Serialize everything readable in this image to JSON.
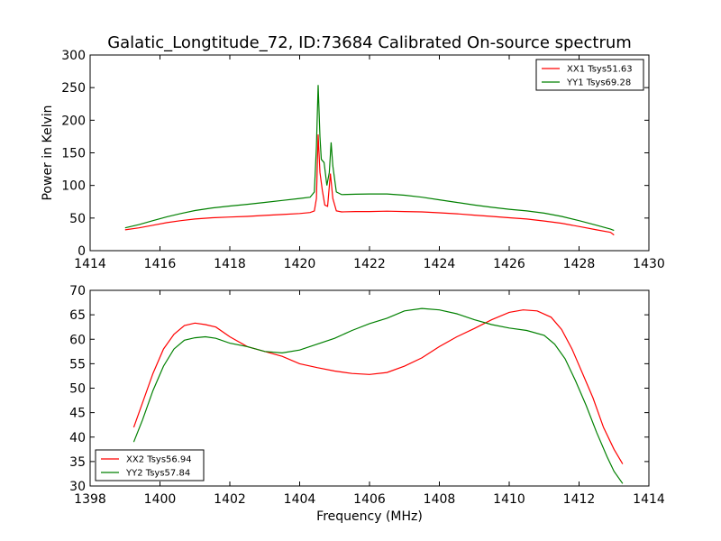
{
  "figure_title": "Galatic_Longtitude_72, ID:73684 Calibrated On-source spectrum",
  "chart_data": [
    {
      "type": "line",
      "title": "Galatic_Longtitude_72, ID:73684 Calibrated On-source spectrum",
      "xlabel": "",
      "ylabel": "Power in Kelvin",
      "xlim": [
        1414,
        1430
      ],
      "ylim": [
        0,
        300
      ],
      "xticks": [
        1414,
        1416,
        1418,
        1420,
        1422,
        1424,
        1426,
        1428,
        1430
      ],
      "yticks": [
        0,
        50,
        100,
        150,
        200,
        250,
        300
      ],
      "grid": false,
      "legend_position": "top-right",
      "series": [
        {
          "name": "XX1 Tsys51.63",
          "color": "#ff0000",
          "points": [
            [
              1415.0,
              32
            ],
            [
              1415.4,
              35
            ],
            [
              1415.8,
              39
            ],
            [
              1416.2,
              43
            ],
            [
              1416.6,
              46
            ],
            [
              1417.0,
              48.5
            ],
            [
              1417.5,
              50.5
            ],
            [
              1418.0,
              51.5
            ],
            [
              1418.5,
              52.5
            ],
            [
              1419.0,
              54
            ],
            [
              1419.5,
              55.5
            ],
            [
              1420.0,
              57
            ],
            [
              1420.3,
              58.5
            ],
            [
              1420.42,
              61
            ],
            [
              1420.48,
              80
            ],
            [
              1420.53,
              178
            ],
            [
              1420.58,
              120
            ],
            [
              1420.65,
              92
            ],
            [
              1420.72,
              70
            ],
            [
              1420.8,
              68
            ],
            [
              1420.88,
              118
            ],
            [
              1420.95,
              80
            ],
            [
              1421.05,
              61
            ],
            [
              1421.2,
              59.5
            ],
            [
              1421.6,
              60
            ],
            [
              1422.0,
              60
            ],
            [
              1422.5,
              60.5
            ],
            [
              1423.0,
              60
            ],
            [
              1423.5,
              59.5
            ],
            [
              1424.0,
              58
            ],
            [
              1424.5,
              56.5
            ],
            [
              1425.0,
              54.5
            ],
            [
              1425.5,
              52.5
            ],
            [
              1426.0,
              50.5
            ],
            [
              1426.5,
              48.5
            ],
            [
              1427.0,
              45.5
            ],
            [
              1427.5,
              42
            ],
            [
              1428.0,
              37
            ],
            [
              1428.5,
              32
            ],
            [
              1428.9,
              28
            ],
            [
              1429.0,
              24
            ]
          ]
        },
        {
          "name": "YY1 Tsys69.28",
          "color": "#008000",
          "points": [
            [
              1415.0,
              35
            ],
            [
              1415.4,
              40
            ],
            [
              1415.8,
              46
            ],
            [
              1416.2,
              52
            ],
            [
              1416.6,
              57
            ],
            [
              1417.0,
              61.5
            ],
            [
              1417.5,
              65.5
            ],
            [
              1418.0,
              68.5
            ],
            [
              1418.5,
              71
            ],
            [
              1419.0,
              74
            ],
            [
              1419.5,
              77
            ],
            [
              1420.0,
              80
            ],
            [
              1420.3,
              82
            ],
            [
              1420.42,
              90
            ],
            [
              1420.48,
              160
            ],
            [
              1420.53,
              254
            ],
            [
              1420.58,
              175
            ],
            [
              1420.62,
              140
            ],
            [
              1420.7,
              135
            ],
            [
              1420.78,
              100
            ],
            [
              1420.85,
              120
            ],
            [
              1420.9,
              166
            ],
            [
              1420.95,
              130
            ],
            [
              1421.05,
              90
            ],
            [
              1421.2,
              86
            ],
            [
              1421.6,
              86.5
            ],
            [
              1422.0,
              87
            ],
            [
              1422.5,
              87
            ],
            [
              1423.0,
              85
            ],
            [
              1423.5,
              82
            ],
            [
              1424.0,
              78
            ],
            [
              1424.5,
              74
            ],
            [
              1425.0,
              70
            ],
            [
              1425.5,
              66.5
            ],
            [
              1426.0,
              63.5
            ],
            [
              1426.5,
              61
            ],
            [
              1427.0,
              57.5
            ],
            [
              1427.5,
              52.5
            ],
            [
              1428.0,
              46
            ],
            [
              1428.5,
              39
            ],
            [
              1428.9,
              33
            ],
            [
              1429.0,
              31
            ]
          ]
        }
      ]
    },
    {
      "type": "line",
      "title": "",
      "xlabel": "Frequency (MHz)",
      "ylabel": "",
      "xlim": [
        1398,
        1414
      ],
      "ylim": [
        30,
        70
      ],
      "xticks": [
        1398,
        1400,
        1402,
        1404,
        1406,
        1408,
        1410,
        1412,
        1414
      ],
      "yticks": [
        30,
        35,
        40,
        45,
        50,
        55,
        60,
        65,
        70
      ],
      "grid": false,
      "legend_position": "bottom-left",
      "series": [
        {
          "name": "XX2 Tsys56.94",
          "color": "#ff0000",
          "points": [
            [
              1399.25,
              42
            ],
            [
              1399.5,
              47
            ],
            [
              1399.8,
              53
            ],
            [
              1400.1,
              58
            ],
            [
              1400.4,
              61
            ],
            [
              1400.7,
              62.8
            ],
            [
              1401.0,
              63.3
            ],
            [
              1401.3,
              63
            ],
            [
              1401.6,
              62.5
            ],
            [
              1402.0,
              60.5
            ],
            [
              1402.5,
              58.5
            ],
            [
              1403.0,
              57.5
            ],
            [
              1403.5,
              56.5
            ],
            [
              1404.0,
              55
            ],
            [
              1404.5,
              54.2
            ],
            [
              1405.0,
              53.5
            ],
            [
              1405.5,
              53
            ],
            [
              1406.0,
              52.8
            ],
            [
              1406.5,
              53.2
            ],
            [
              1407.0,
              54.5
            ],
            [
              1407.5,
              56.2
            ],
            [
              1408.0,
              58.5
            ],
            [
              1408.5,
              60.5
            ],
            [
              1409.0,
              62.2
            ],
            [
              1409.5,
              64
            ],
            [
              1410.0,
              65.5
            ],
            [
              1410.4,
              66
            ],
            [
              1410.8,
              65.8
            ],
            [
              1411.2,
              64.5
            ],
            [
              1411.5,
              62
            ],
            [
              1411.8,
              58
            ],
            [
              1412.1,
              53
            ],
            [
              1412.4,
              48
            ],
            [
              1412.7,
              42
            ],
            [
              1413.0,
              37.5
            ],
            [
              1413.25,
              34.5
            ]
          ]
        },
        {
          "name": "YY2 Tsys57.84",
          "color": "#008000",
          "points": [
            [
              1399.25,
              39
            ],
            [
              1399.5,
              43.5
            ],
            [
              1399.8,
              49.5
            ],
            [
              1400.1,
              54.5
            ],
            [
              1400.4,
              58
            ],
            [
              1400.7,
              59.8
            ],
            [
              1401.0,
              60.3
            ],
            [
              1401.3,
              60.5
            ],
            [
              1401.6,
              60.2
            ],
            [
              1402.0,
              59.2
            ],
            [
              1402.5,
              58.5
            ],
            [
              1403.0,
              57.5
            ],
            [
              1403.5,
              57.2
            ],
            [
              1404.0,
              57.8
            ],
            [
              1404.5,
              59
            ],
            [
              1405.0,
              60.2
            ],
            [
              1405.5,
              61.8
            ],
            [
              1406.0,
              63.2
            ],
            [
              1406.5,
              64.3
            ],
            [
              1407.0,
              65.8
            ],
            [
              1407.5,
              66.3
            ],
            [
              1408.0,
              66
            ],
            [
              1408.5,
              65.2
            ],
            [
              1409.0,
              64
            ],
            [
              1409.5,
              63
            ],
            [
              1410.0,
              62.3
            ],
            [
              1410.5,
              61.8
            ],
            [
              1411.0,
              60.8
            ],
            [
              1411.3,
              59
            ],
            [
              1411.6,
              56
            ],
            [
              1411.9,
              51.5
            ],
            [
              1412.2,
              46.5
            ],
            [
              1412.5,
              41
            ],
            [
              1412.8,
              36
            ],
            [
              1413.0,
              33
            ],
            [
              1413.25,
              30.5
            ]
          ]
        }
      ]
    }
  ]
}
